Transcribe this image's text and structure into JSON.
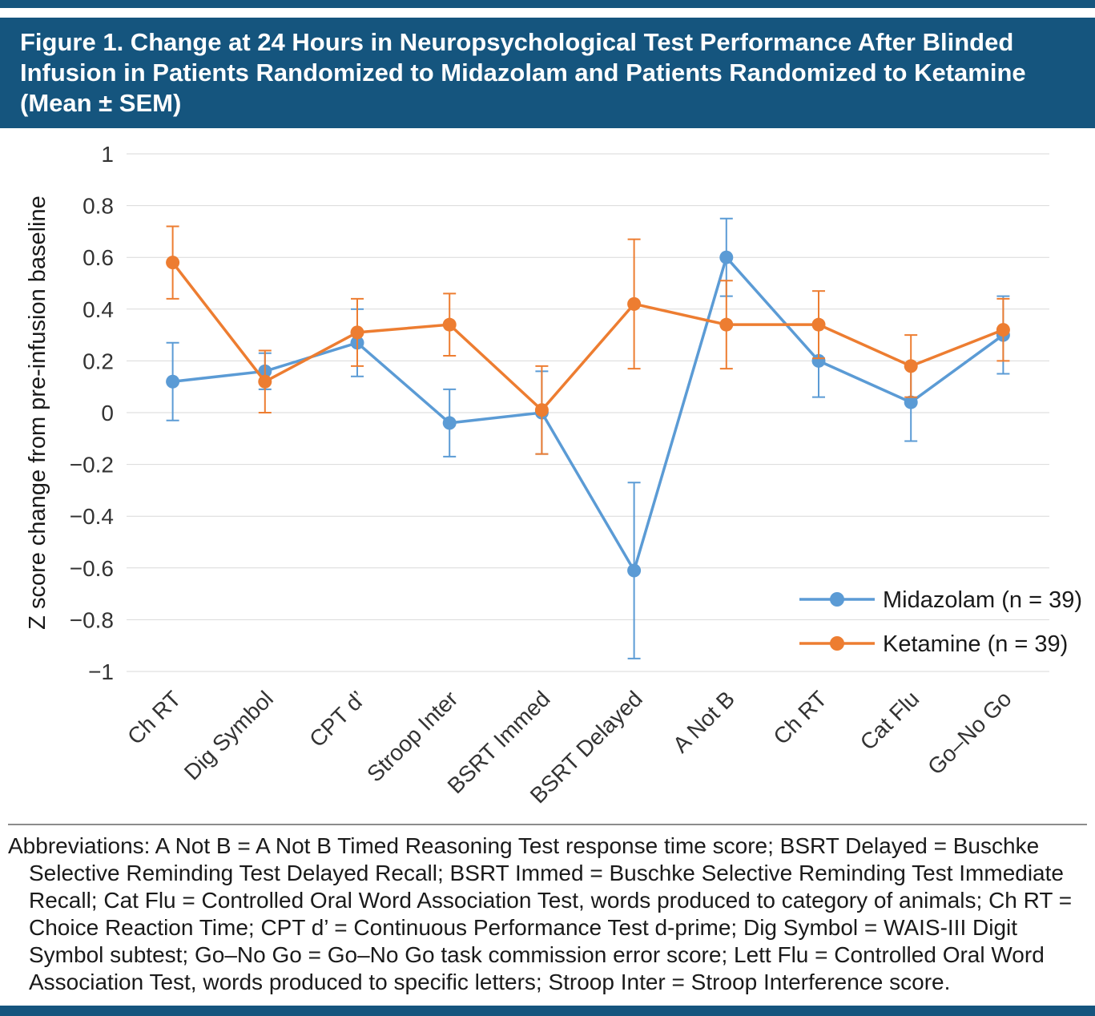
{
  "page": {
    "accent_color": "#15557E",
    "background_color": "#FFFFFF",
    "rule_color": "#8C8C8C"
  },
  "header": {
    "title": "Figure 1. Change at 24 Hours in Neuropsychological Test Performance After Blinded Infusion in Patients Randomized to Midazolam and Patients Randomized to Ketamine (Mean ± SEM)"
  },
  "chart_data": {
    "type": "line",
    "title": "",
    "xlabel": "",
    "ylabel": "Z score change from pre-infusion baseline",
    "ylim": [
      -1,
      1
    ],
    "ytick_values": [
      1,
      0.8,
      0.6,
      0.4,
      0.2,
      0,
      -0.2,
      -0.4,
      -0.6,
      -0.8,
      -1
    ],
    "ytick_labels": [
      "1",
      "0.8",
      "0.6",
      "0.4",
      "0.2",
      "0",
      "−0.2",
      "−0.4",
      "−0.6",
      "−0.8",
      "−1"
    ],
    "grid": true,
    "grid_color": "#D9D9D9",
    "legend_position": "inside lower right",
    "categories": [
      "Ch RT",
      "Dig Symbol",
      "CPT d’",
      "Stroop Inter",
      "BSRT Immed",
      "BSRT Delayed",
      "A Not B",
      "Ch RT",
      "Cat Flu",
      "Go–No Go"
    ],
    "series": [
      {
        "name": "Midazolam (n = 39)",
        "color": "#5B9BD5",
        "values": [
          0.12,
          0.16,
          0.27,
          -0.04,
          0.0,
          -0.61,
          0.6,
          0.2,
          0.04,
          0.3
        ],
        "sem": [
          0.15,
          0.07,
          0.13,
          0.13,
          0.16,
          0.34,
          0.15,
          0.14,
          0.15,
          0.15
        ]
      },
      {
        "name": "Ketamine (n = 39)",
        "color": "#ED7D31",
        "values": [
          0.58,
          0.12,
          0.31,
          0.34,
          0.01,
          0.42,
          0.34,
          0.34,
          0.18,
          0.32
        ],
        "sem": [
          0.14,
          0.12,
          0.13,
          0.12,
          0.17,
          0.25,
          0.17,
          0.13,
          0.12,
          0.12
        ]
      }
    ]
  },
  "footnote": {
    "text": "Abbreviations: A Not B = A Not B Timed Reasoning Test response time score; BSRT Delayed = Buschke Selective Reminding Test Delayed Recall; BSRT Immed = Buschke Selective Reminding Test Immediate Recall; Cat Flu = Controlled Oral Word Association Test, words produced to category of animals; Ch RT = Choice Reaction Time; CPT d’ = Continuous Performance Test d-prime; Dig Symbol = WAIS-III Digit Symbol subtest; Go–No Go = Go–No Go task commission error score; Lett Flu = Controlled Oral Word Association Test, words produced to specific letters; Stroop Inter = Stroop Interference score."
  }
}
